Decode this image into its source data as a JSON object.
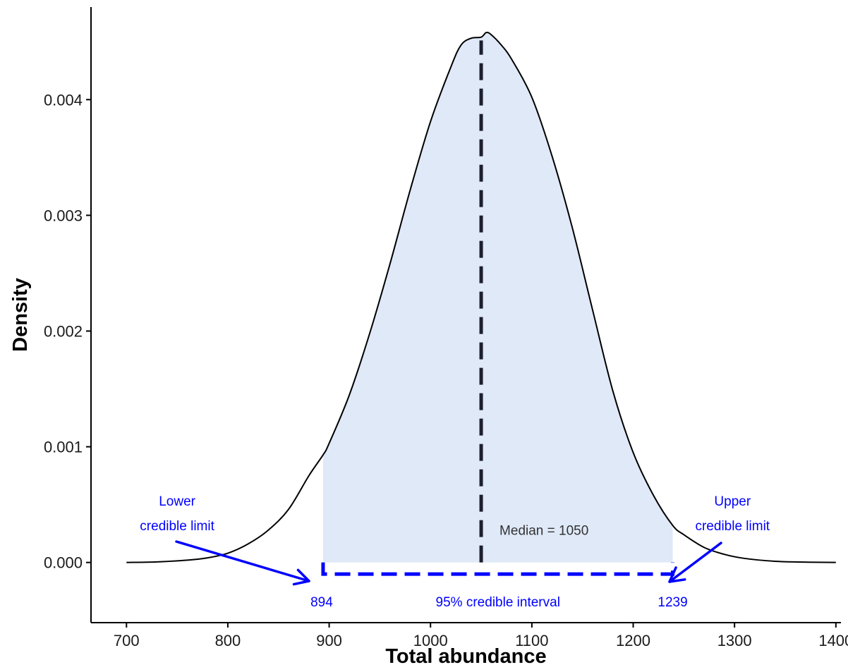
{
  "colors": {
    "curve": "#000000",
    "fill": "#dfe9f8",
    "median_line": "#1c1f2e",
    "annotation": "#0000ff",
    "axis": "#000000"
  },
  "chart_data": {
    "type": "area",
    "title": "",
    "xlabel": "Total abundance",
    "ylabel": "Density",
    "xlim": [
      665,
      1405
    ],
    "ylim": [
      -0.00052,
      0.0048
    ],
    "x_ticks": [
      700,
      800,
      900,
      1000,
      1100,
      1200,
      1300,
      1400
    ],
    "x_tick_labels": [
      "700",
      "800",
      "900",
      "1000",
      "1100",
      "1200",
      "1300",
      "1400"
    ],
    "y_ticks": [
      0,
      0.001,
      0.002,
      0.003,
      0.004
    ],
    "y_tick_labels": [
      "0.000",
      "0.001",
      "0.002",
      "0.003",
      "0.004"
    ],
    "grid": false,
    "series": [
      {
        "x": [
          700,
          730,
          760,
          780,
          800,
          820,
          840,
          860,
          880,
          894,
          900,
          920,
          940,
          960,
          980,
          1000,
          1020,
          1030,
          1040,
          1050,
          1055,
          1060,
          1070,
          1080,
          1100,
          1120,
          1140,
          1160,
          1180,
          1200,
          1220,
          1239,
          1250,
          1270,
          1290,
          1310,
          1340,
          1370,
          1400
        ],
        "y": [
          0.0,
          5e-06,
          2e-05,
          4e-05,
          8e-05,
          0.00016,
          0.00028,
          0.00046,
          0.00075,
          0.00093,
          0.00103,
          0.00145,
          0.00198,
          0.00258,
          0.00322,
          0.00381,
          0.00428,
          0.00447,
          0.00453,
          0.00454,
          0.00458,
          0.00456,
          0.00447,
          0.00435,
          0.00402,
          0.00351,
          0.00289,
          0.00218,
          0.00148,
          0.00095,
          0.00058,
          0.00032,
          0.00024,
          0.00013,
          7e-05,
          3.5e-05,
          1e-05,
          3e-06,
          0.0
        ]
      }
    ],
    "shaded_interval": [
      894,
      1239
    ],
    "median": 1050,
    "annotations": {
      "median_label": "Median =  1050",
      "interval_label": "95% credible interval",
      "lower_value": "894",
      "upper_value": "1239",
      "lower_limit_line1": "Lower",
      "lower_limit_line2": "credible limit",
      "upper_limit_line1": "Upper",
      "upper_limit_line2": "credible limit"
    }
  }
}
